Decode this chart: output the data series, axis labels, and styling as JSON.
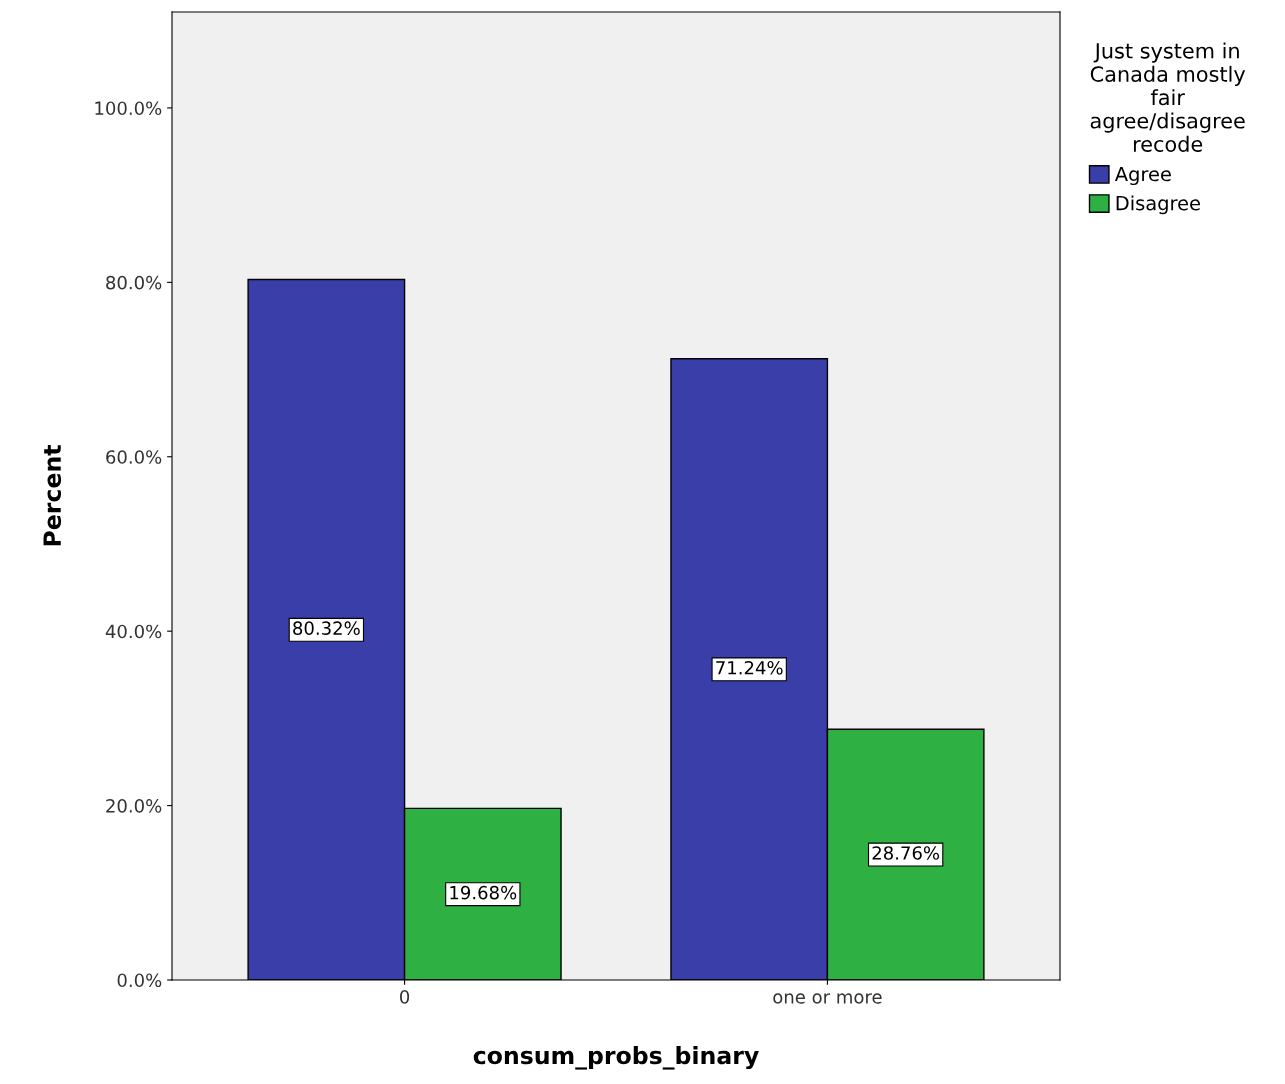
{
  "chart_data": {
    "type": "bar",
    "xlabel": "consum_probs_binary",
    "ylabel": "Percent",
    "legend_title": "Just system in\nCanada mostly\nfair\nagree/disagree\nrecode",
    "categories": [
      "0",
      "one or more"
    ],
    "series": [
      {
        "name": "Agree",
        "color": "#3a3ea8",
        "values": [
          80.32,
          71.24
        ],
        "value_labels": [
          "80.32%",
          "71.24%"
        ]
      },
      {
        "name": "Disagree",
        "color": "#2eb043",
        "values": [
          19.68,
          28.76
        ],
        "value_labels": [
          "19.68%",
          "28.76%"
        ]
      }
    ],
    "ylim": [
      0,
      111
    ],
    "yticks": [
      {
        "value": 0,
        "label": "0.0%"
      },
      {
        "value": 20,
        "label": "20.0%"
      },
      {
        "value": 40,
        "label": "40.0%"
      },
      {
        "value": 60,
        "label": "60.0%"
      },
      {
        "value": 80,
        "label": "80.0%"
      },
      {
        "value": 100,
        "label": "100.0%"
      }
    ],
    "legend": "right",
    "grid": false
  }
}
